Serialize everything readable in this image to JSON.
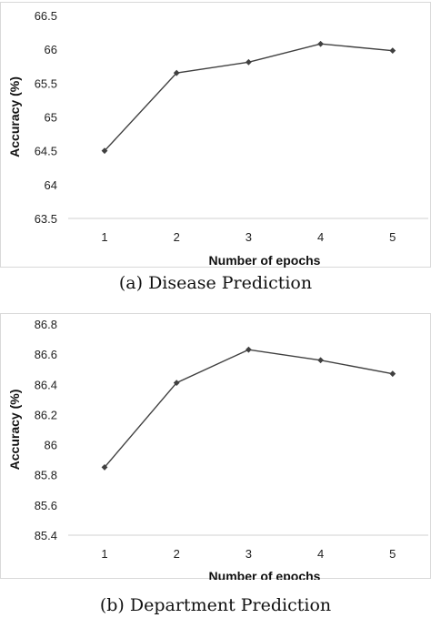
{
  "chart_data": [
    {
      "type": "line",
      "x": [
        1,
        2,
        3,
        4,
        5
      ],
      "categories": [
        "1",
        "2",
        "3",
        "4",
        "5"
      ],
      "series": [
        {
          "values": [
            64.5,
            65.65,
            65.81,
            66.08,
            65.98
          ]
        }
      ],
      "xlabel": "Number of epochs",
      "ylabel": "Accuracy (%)",
      "ylim": [
        63.5,
        66.5
      ],
      "yticks": [
        "63.5",
        "64",
        "64.5",
        "65",
        "65.5",
        "66",
        "66.5"
      ],
      "grid": false,
      "caption": "(a) Disease Prediction",
      "line_color": "#404040"
    },
    {
      "type": "line",
      "x": [
        1,
        2,
        3,
        4,
        5
      ],
      "categories": [
        "1",
        "2",
        "3",
        "4",
        "5"
      ],
      "series": [
        {
          "values": [
            85.85,
            86.41,
            86.63,
            86.56,
            86.47
          ]
        }
      ],
      "xlabel": "Number of epochs",
      "ylabel": "Accuracy (%)",
      "ylim": [
        85.4,
        86.8
      ],
      "yticks": [
        "85.4",
        "85.6",
        "85.8",
        "86",
        "86.2",
        "86.4",
        "86.6",
        "86.8"
      ],
      "grid": false,
      "caption": "(b) Department Prediction",
      "line_color": "#404040"
    }
  ]
}
